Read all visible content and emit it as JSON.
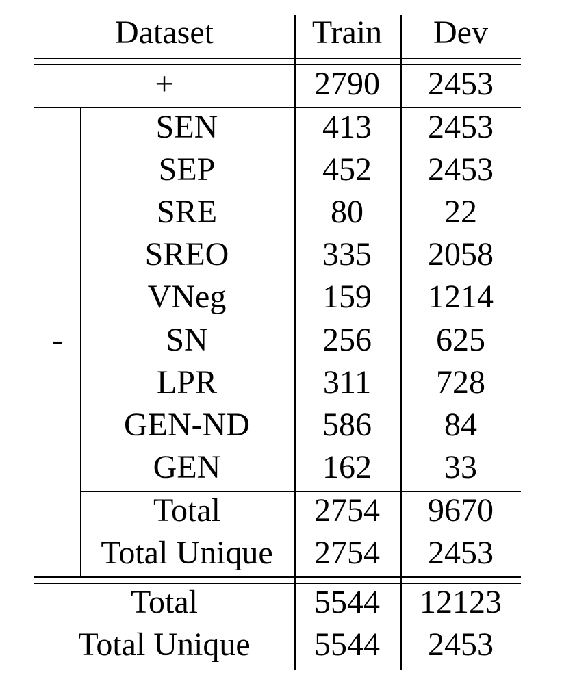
{
  "table": {
    "columns": [
      "Dataset",
      "Train",
      "Dev"
    ],
    "positive": {
      "label": "+",
      "train": "2790",
      "dev": "2453"
    },
    "negative": {
      "group_label": "-",
      "rows": [
        {
          "name": "SEN",
          "train": "413",
          "dev": "2453"
        },
        {
          "name": "SEP",
          "train": "452",
          "dev": "2453"
        },
        {
          "name": "SRE",
          "train": "80",
          "dev": "22"
        },
        {
          "name": "SREO",
          "train": "335",
          "dev": "2058"
        },
        {
          "name": "VNeg",
          "train": "159",
          "dev": "1214"
        },
        {
          "name": "SN",
          "train": "256",
          "dev": "625"
        },
        {
          "name": "LPR",
          "train": "311",
          "dev": "728"
        },
        {
          "name": "GEN-ND",
          "train": "586",
          "dev": "84"
        },
        {
          "name": "GEN",
          "train": "162",
          "dev": "33"
        }
      ],
      "total": {
        "name": "Total",
        "train": "2754",
        "dev": "9670"
      },
      "total_unique": {
        "name": "Total Unique",
        "train": "2754",
        "dev": "2453"
      }
    },
    "overall": {
      "total": {
        "name": "Total",
        "train": "5544",
        "dev": "12123"
      },
      "total_unique": {
        "name": "Total Unique",
        "train": "5544",
        "dev": "2453"
      }
    }
  }
}
